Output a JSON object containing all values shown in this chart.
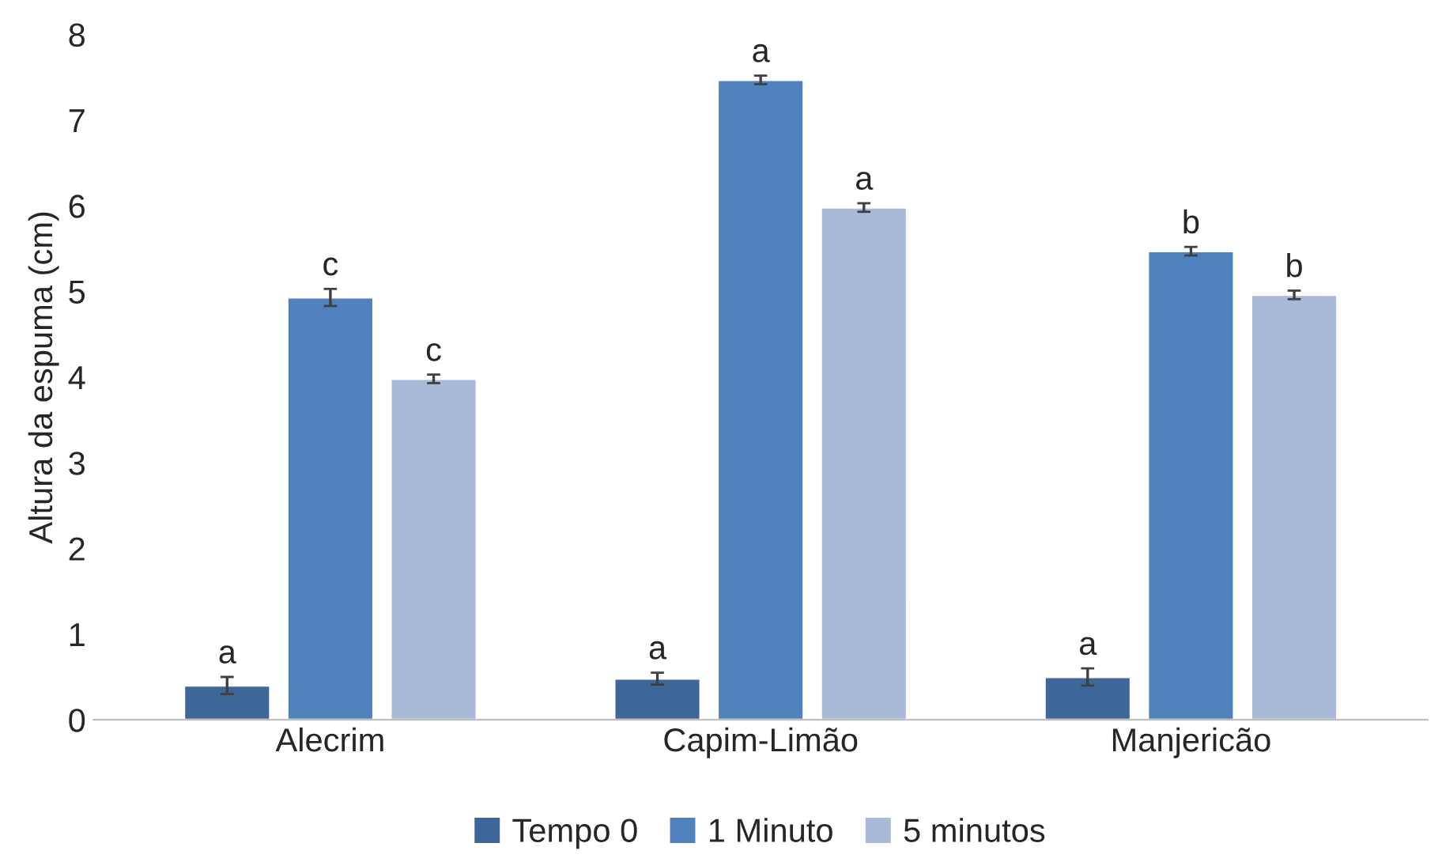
{
  "chart_data": {
    "type": "bar",
    "ylabel": "Altura da espuma (cm)",
    "categories": [
      "Alecrim",
      "Capim-Limão",
      "Manjericão"
    ],
    "series": [
      {
        "name": "Tempo 0",
        "color": "#3f6699",
        "values": [
          0.4,
          0.48,
          0.5
        ],
        "errors": [
          0.1,
          0.07,
          0.1
        ],
        "value_labels": [
          "a",
          "a",
          "a"
        ]
      },
      {
        "name": "1 Minuto",
        "color": "#4f81bd",
        "values": [
          4.93,
          7.47,
          5.47
        ],
        "errors": [
          0.1,
          0.05,
          0.05
        ],
        "value_labels": [
          "c",
          "a",
          "b"
        ]
      },
      {
        "name": "5 minutos",
        "color": "#a9b9d8",
        "values": [
          3.98,
          5.98,
          4.96
        ],
        "errors": [
          0.05,
          0.05,
          0.05
        ],
        "value_labels": [
          "c",
          "a",
          "b"
        ]
      }
    ],
    "ylim": [
      0,
      8
    ],
    "yticks": [
      0,
      1,
      2,
      3,
      4,
      5,
      6,
      7,
      8
    ],
    "grid": false,
    "legend": "bottom"
  }
}
